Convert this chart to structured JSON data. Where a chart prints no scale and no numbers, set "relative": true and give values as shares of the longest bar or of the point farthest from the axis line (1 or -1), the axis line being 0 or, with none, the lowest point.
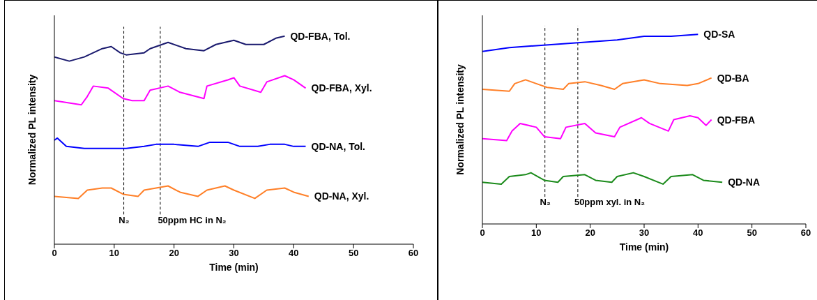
{
  "chart_data": [
    {
      "type": "line",
      "relative": true,
      "xlabel": "Time (min)",
      "ylabel": "Normalized PL intensity",
      "xlim": [
        0,
        60
      ],
      "xticks": [
        0,
        10,
        20,
        30,
        40,
        50,
        60
      ],
      "tick_labels": "x",
      "marker": "none",
      "line_style": "solid",
      "series": [
        {
          "name": "QD-FBA, Tol.",
          "color": "#1a1a6e",
          "x": [
            0,
            2.5,
            5,
            8,
            9.5,
            11,
            12,
            15,
            16,
            19,
            22,
            25,
            27,
            30,
            32,
            35,
            37,
            38.5
          ],
          "values": [
            0.9,
            0.88,
            0.9,
            0.94,
            0.95,
            0.92,
            0.91,
            0.92,
            0.94,
            0.97,
            0.94,
            0.93,
            0.96,
            0.98,
            0.96,
            0.96,
            0.99,
            1.0
          ]
        },
        {
          "name": "QD-FBA, Xyl.",
          "color": "#ff00ff",
          "x": [
            0,
            4.5,
            5.5,
            6.5,
            9,
            11.5,
            13,
            15,
            16,
            19,
            21,
            25,
            25.5,
            29,
            30,
            31,
            34.5,
            35.5,
            38.5,
            40,
            42
          ],
          "values": [
            0.69,
            0.67,
            0.71,
            0.76,
            0.75,
            0.7,
            0.69,
            0.69,
            0.74,
            0.76,
            0.73,
            0.7,
            0.76,
            0.79,
            0.8,
            0.76,
            0.73,
            0.78,
            0.81,
            0.79,
            0.75
          ]
        },
        {
          "name": "QD-NA, Tol.",
          "color": "#0000ff",
          "x": [
            0,
            0.5,
            2,
            5,
            9,
            12,
            15,
            17,
            20,
            24,
            26,
            29,
            31,
            34,
            36,
            38.5,
            40,
            42
          ],
          "values": [
            0.5,
            0.51,
            0.47,
            0.46,
            0.46,
            0.46,
            0.47,
            0.48,
            0.48,
            0.47,
            0.49,
            0.49,
            0.47,
            0.47,
            0.48,
            0.48,
            0.47,
            0.47
          ]
        },
        {
          "name": "QD-NA, Xyl.",
          "color": "#ff7f27",
          "x": [
            0,
            4,
            5.5,
            8,
            9.5,
            11.5,
            14,
            15,
            19,
            21,
            24,
            25.5,
            28.5,
            30,
            33.5,
            35.5,
            38.5,
            40,
            42.5
          ],
          "values": [
            0.23,
            0.22,
            0.26,
            0.27,
            0.27,
            0.24,
            0.23,
            0.26,
            0.28,
            0.25,
            0.23,
            0.26,
            0.28,
            0.26,
            0.22,
            0.26,
            0.27,
            0.25,
            0.23
          ]
        }
      ],
      "ref_lines": [
        {
          "axis": "x",
          "value": 11.6,
          "color": "#000000",
          "line_style": "dashed"
        },
        {
          "axis": "x",
          "value": 17.7,
          "color": "#000000",
          "line_style": "dashed"
        }
      ],
      "annotations": [
        "N₂",
        "50ppm HC in N₂"
      ]
    },
    {
      "type": "line",
      "relative": true,
      "xlabel": "Time (min)",
      "ylabel": "Normalized PL intensity",
      "xlim": [
        0,
        60
      ],
      "xticks": [
        0,
        10,
        20,
        30,
        40,
        50,
        60
      ],
      "tick_labels": "x",
      "marker": "none",
      "line_style": "solid",
      "series": [
        {
          "name": "QD-SA",
          "color": "#0000ff",
          "x": [
            0,
            5,
            10,
            15,
            20,
            25,
            30,
            35,
            40
          ],
          "values": [
            0.91,
            0.93,
            0.94,
            0.95,
            0.96,
            0.97,
            0.99,
            0.99,
            1.0
          ]
        },
        {
          "name": "QD-BA",
          "color": "#ff7f27",
          "x": [
            0,
            5,
            6,
            8,
            10,
            12,
            15,
            16,
            19,
            22,
            24.5,
            26,
            30,
            33,
            38,
            40,
            42.5
          ],
          "values": [
            0.71,
            0.7,
            0.74,
            0.76,
            0.74,
            0.72,
            0.71,
            0.74,
            0.75,
            0.73,
            0.71,
            0.74,
            0.76,
            0.74,
            0.73,
            0.74,
            0.77
          ]
        },
        {
          "name": "QD-FBA",
          "color": "#ff00ff",
          "x": [
            0,
            4.5,
            5.5,
            7,
            10,
            11.5,
            14.5,
            15.5,
            19,
            21,
            24.5,
            25.5,
            29.5,
            31,
            34.5,
            35.5,
            38.5,
            40,
            41.5,
            42.5
          ],
          "values": [
            0.45,
            0.44,
            0.49,
            0.53,
            0.51,
            0.46,
            0.45,
            0.51,
            0.53,
            0.48,
            0.46,
            0.51,
            0.56,
            0.53,
            0.49,
            0.55,
            0.57,
            0.56,
            0.52,
            0.55
          ]
        },
        {
          "name": "QD-NA",
          "color": "#1a8a1a",
          "x": [
            0,
            3.5,
            5,
            8,
            9,
            11.5,
            14,
            15,
            19,
            21,
            24,
            25,
            28,
            30,
            33.5,
            35,
            39,
            41,
            44.5
          ],
          "values": [
            0.22,
            0.21,
            0.25,
            0.26,
            0.27,
            0.23,
            0.22,
            0.25,
            0.26,
            0.23,
            0.22,
            0.25,
            0.27,
            0.25,
            0.21,
            0.25,
            0.26,
            0.23,
            0.22
          ]
        }
      ],
      "ref_lines": [
        {
          "axis": "x",
          "value": 11.6,
          "color": "#000000",
          "line_style": "dashed"
        },
        {
          "axis": "x",
          "value": 17.7,
          "color": "#000000",
          "line_style": "dashed"
        }
      ],
      "annotations": [
        "N₂",
        "50ppm xyl. in N₂"
      ]
    }
  ]
}
